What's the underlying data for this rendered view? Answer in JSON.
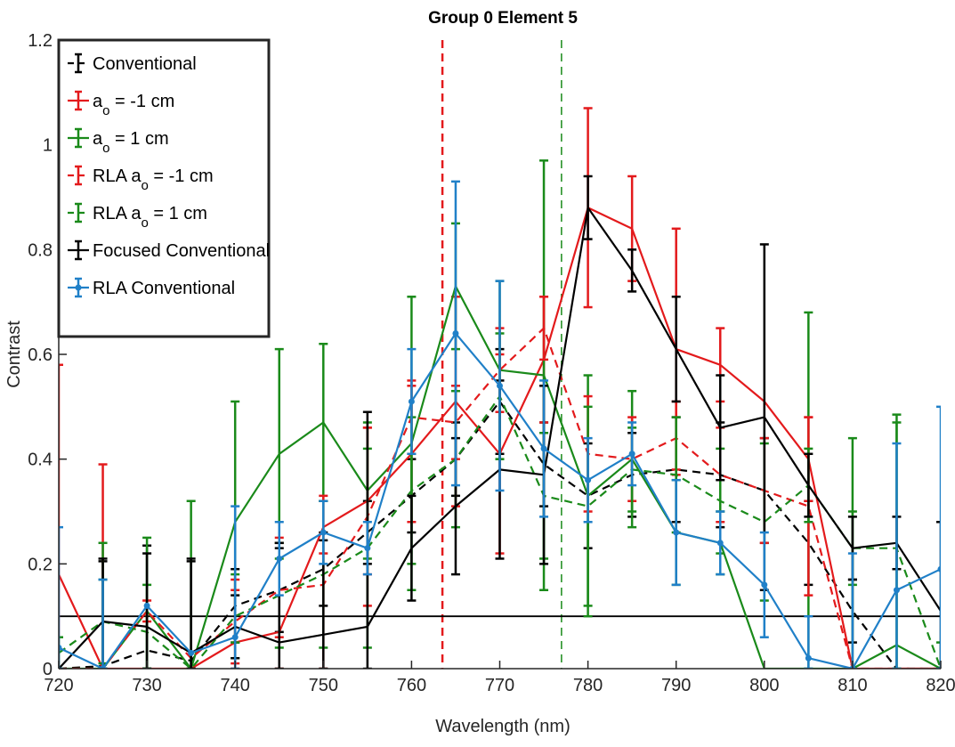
{
  "chart_data": {
    "type": "line",
    "title": "Group 0 Element 5",
    "xlabel": "Wavelength (nm)",
    "ylabel": "Contrast",
    "xlim": [
      720,
      820
    ],
    "ylim": [
      0,
      1.2
    ],
    "xticks": [
      "720",
      "730",
      "740",
      "750",
      "760",
      "770",
      "780",
      "790",
      "800",
      "810",
      "820"
    ],
    "yticks": [
      "0",
      "0.2",
      "0.4",
      "0.6",
      "0.8",
      "1",
      "1.2"
    ],
    "grid": false,
    "legend_position": "top-left",
    "x": [
      720,
      725,
      730,
      735,
      740,
      745,
      750,
      755,
      760,
      765,
      770,
      775,
      780,
      785,
      790,
      795,
      800,
      805,
      810,
      815,
      820
    ],
    "series": [
      {
        "name": "Conventional",
        "color": "#000000",
        "style": "dashed",
        "values": [
          0.0,
          0.005,
          0.035,
          0.015,
          0.12,
          0.15,
          0.19,
          0.26,
          0.33,
          0.4,
          0.51,
          0.39,
          0.33,
          0.37,
          0.38,
          0.37,
          0.34,
          0.24,
          0.11,
          0.0,
          0.0
        ],
        "err": [
          0.0,
          0.2,
          0.2,
          0.19,
          0.07,
          0.08,
          0.07,
          0.06,
          0.07,
          0.07,
          0.1,
          0.08,
          0.1,
          0.08,
          0.1,
          0.1,
          0.1,
          0.08,
          0.06,
          0.0,
          0.0
        ]
      },
      {
        "name": "a_o = -1 cm",
        "color": "#e31a1c",
        "style": "solid",
        "values": [
          0.18,
          0.0,
          0.0,
          0.0,
          0.05,
          0.07,
          0.27,
          0.32,
          0.41,
          0.51,
          0.41,
          0.59,
          0.88,
          0.84,
          0.61,
          0.58,
          0.51,
          0.4,
          0.0,
          0.0,
          0.0
        ],
        "err": [
          0.4,
          0.39,
          0.0,
          0.0,
          0.1,
          0.18,
          0.05,
          0.14,
          0.13,
          0.2,
          0.19,
          0.12,
          0.19,
          0.1,
          0.23,
          0.07,
          0.0,
          0.08,
          0.0,
          0.0,
          0.0
        ]
      },
      {
        "name": "a_o = 1 cm",
        "color": "#1a8a1a",
        "style": "solid",
        "values": [
          0.0,
          0.0,
          0.11,
          0.0,
          0.28,
          0.41,
          0.47,
          0.34,
          0.43,
          0.73,
          0.57,
          0.56,
          0.33,
          0.4,
          0.26,
          0.24,
          0.0,
          0.0,
          0.0,
          0.045,
          0.0
        ],
        "err": [
          0.0,
          0.24,
          0.14,
          0.32,
          0.23,
          0.2,
          0.15,
          0.13,
          0.28,
          0.12,
          0.17,
          0.41,
          0.23,
          0.13,
          0.1,
          0.06,
          0.0,
          0.68,
          0.44,
          0.44,
          0.0
        ]
      },
      {
        "name": "RLA a_o = -1 cm",
        "color": "#e31a1c",
        "style": "dashed",
        "values": [
          0.0,
          0.0,
          0.11,
          0.02,
          0.09,
          0.15,
          0.16,
          0.29,
          0.48,
          0.47,
          0.57,
          0.65,
          0.41,
          0.4,
          0.44,
          0.37,
          0.34,
          0.31,
          0.0,
          0.0,
          0.0
        ],
        "err": [
          0.0,
          0.0,
          0.02,
          0.0,
          0.08,
          0.09,
          0.17,
          0.17,
          0.07,
          0.07,
          0.08,
          0.06,
          0.11,
          0.08,
          0.07,
          0.09,
          0.1,
          0.17,
          0.0,
          0.0,
          0.0
        ]
      },
      {
        "name": "RLA a_o = 1 cm",
        "color": "#1a8a1a",
        "style": "dashed",
        "values": [
          0.03,
          0.09,
          0.07,
          0.0,
          0.1,
          0.14,
          0.18,
          0.23,
          0.34,
          0.4,
          0.52,
          0.33,
          0.31,
          0.38,
          0.37,
          0.32,
          0.28,
          0.35,
          0.23,
          0.23,
          0.0
        ],
        "err": [
          0.03,
          0.08,
          0.09,
          0.0,
          0.08,
          0.1,
          0.14,
          0.19,
          0.14,
          0.13,
          0.12,
          0.12,
          0.19,
          0.08,
          0.11,
          0.1,
          0.15,
          0.07,
          0.07,
          0.24,
          0.05
        ]
      },
      {
        "name": "Focused Conventional",
        "color": "#000000",
        "style": "solid",
        "values": [
          0.0,
          0.09,
          0.08,
          0.03,
          0.08,
          0.05,
          0.065,
          0.08,
          0.23,
          0.31,
          0.38,
          0.37,
          0.88,
          0.76,
          0.61,
          0.46,
          0.48,
          0.35,
          0.23,
          0.24,
          0.11
        ],
        "err": [
          0.0,
          0.12,
          0.14,
          0.18,
          0.06,
          0.19,
          0.18,
          0.41,
          0.1,
          0.13,
          0.17,
          0.17,
          0.06,
          0.04,
          0.1,
          0.1,
          0.33,
          0.06,
          0.06,
          0.05,
          0.17
        ]
      },
      {
        "name": "RLA Conventional",
        "color": "#2080c8",
        "style": "solid-marker",
        "values": [
          0.04,
          0.0,
          0.12,
          0.03,
          0.06,
          0.21,
          0.26,
          0.23,
          0.51,
          0.64,
          0.54,
          0.42,
          0.36,
          0.41,
          0.26,
          0.24,
          0.16,
          0.02,
          0.0,
          0.15,
          0.19
        ],
        "err": [
          0.23,
          0.17,
          0.0,
          0.0,
          0.25,
          0.07,
          0.06,
          0.05,
          0.1,
          0.29,
          0.2,
          0.13,
          0.08,
          0.06,
          0.1,
          0.06,
          0.1,
          0.08,
          0.22,
          0.28,
          0.31
        ]
      }
    ],
    "reference_lines": [
      {
        "orientation": "vertical",
        "x": 763.5,
        "color": "#e31a1c",
        "style": "dashed"
      },
      {
        "orientation": "vertical",
        "x": 777,
        "color": "#1a8a1a",
        "style": "dashed"
      },
      {
        "orientation": "horizontal",
        "y": 0.1,
        "color": "#000000",
        "style": "solid"
      }
    ]
  }
}
